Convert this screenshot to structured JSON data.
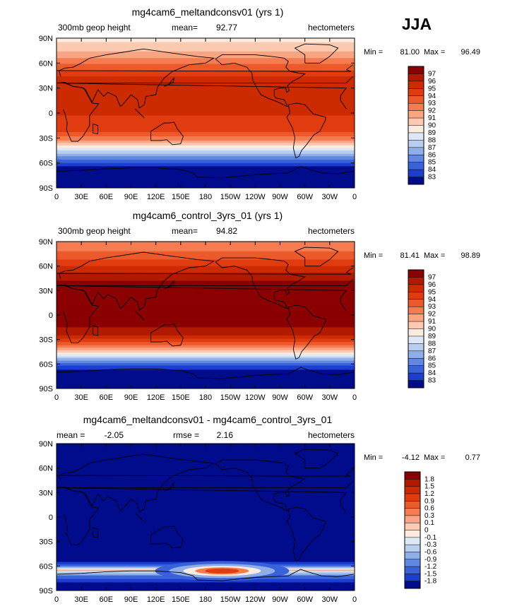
{
  "season": "JJA",
  "chart_data": [
    {
      "type": "heatmap",
      "title": "mg4cam6_meltandconsv01 (yrs 1)",
      "variable": "300mb geop height",
      "mean_label": "mean=",
      "mean": "92.77",
      "units": "hectometers",
      "min_label": "Min =",
      "min": "81.00",
      "max_label": "Max =",
      "max": "96.49",
      "x_ticks": [
        "0",
        "30E",
        "60E",
        "90E",
        "120E",
        "150E",
        "180",
        "150W",
        "120W",
        "90W",
        "60W",
        "30W",
        "0"
      ],
      "y_ticks": [
        "90N",
        "60N",
        "30N",
        "0",
        "30S",
        "60S",
        "90S"
      ],
      "colorbar_labels": [
        "97",
        "96",
        "95",
        "94",
        "93",
        "92",
        "91",
        "90",
        "89",
        "88",
        "87",
        "86",
        "85",
        "84",
        "83"
      ],
      "colorbar_colors": [
        "#8b0000",
        "#b21a00",
        "#cc2a00",
        "#e03c10",
        "#ec5a2c",
        "#f47c50",
        "#f9a482",
        "#fbcab0",
        "#fdebe0",
        "#dde8f7",
        "#b8cef0",
        "#8eaee8",
        "#6088e0",
        "#3a62d8",
        "#1c3ed0",
        "#000c8c"
      ],
      "profile": [
        [
          90,
          89.8
        ],
        [
          80,
          90.2
        ],
        [
          70,
          91.5
        ],
        [
          60,
          92.8
        ],
        [
          50,
          94.2
        ],
        [
          40,
          95.5
        ],
        [
          30,
          96.0
        ],
        [
          15,
          95.7
        ],
        [
          0,
          95.1
        ],
        [
          -15,
          94.6
        ],
        [
          -25,
          93.8
        ],
        [
          -35,
          91.5
        ],
        [
          -45,
          88.0
        ],
        [
          -55,
          85.2
        ],
        [
          -65,
          82.8
        ],
        [
          -75,
          81.8
        ],
        [
          -90,
          81.6
        ]
      ]
    },
    {
      "type": "heatmap",
      "title": "mg4cam6_control_3yrs_01 (yrs 1)",
      "variable": "300mb geop height",
      "mean_label": "mean=",
      "mean": "94.82",
      "units": "hectometers",
      "min_label": "Min =",
      "min": "81.41",
      "max_label": "Max =",
      "max": "98.89",
      "x_ticks": [
        "0",
        "30E",
        "60E",
        "90E",
        "120E",
        "150E",
        "180",
        "150W",
        "120W",
        "90W",
        "60W",
        "30W",
        "0"
      ],
      "y_ticks": [
        "90N",
        "60N",
        "30N",
        "0",
        "30S",
        "60S",
        "90S"
      ],
      "colorbar_labels": [
        "97",
        "96",
        "95",
        "94",
        "93",
        "92",
        "91",
        "90",
        "89",
        "88",
        "87",
        "86",
        "85",
        "84",
        "83"
      ],
      "colorbar_colors": [
        "#8b0000",
        "#b21a00",
        "#cc2a00",
        "#e03c10",
        "#ec5a2c",
        "#f47c50",
        "#f9a482",
        "#fbcab0",
        "#fdebe0",
        "#dde8f7",
        "#b8cef0",
        "#8eaee8",
        "#6088e0",
        "#3a62d8",
        "#1c3ed0",
        "#000c8c"
      ],
      "profile": [
        [
          90,
          92.3
        ],
        [
          80,
          92.8
        ],
        [
          70,
          93.8
        ],
        [
          60,
          95.0
        ],
        [
          50,
          96.3
        ],
        [
          40,
          97.2
        ],
        [
          30,
          97.6
        ],
        [
          15,
          97.5
        ],
        [
          0,
          97.3
        ],
        [
          -15,
          97.0
        ],
        [
          -25,
          96.0
        ],
        [
          -35,
          93.5
        ],
        [
          -45,
          90.2
        ],
        [
          -55,
          86.3
        ],
        [
          -65,
          83.2
        ],
        [
          -75,
          82.2
        ],
        [
          -90,
          81.9
        ]
      ]
    },
    {
      "type": "heatmap",
      "title": "mg4cam6_meltandconsv01 - mg4cam6_control_3yrs_01",
      "mean_label": "mean =",
      "mean": "-2.05",
      "rmse_label": "rmse =",
      "rmse": "2.16",
      "units": "hectometers",
      "min_label": "Min =",
      "min": "-4.12",
      "max_label": "Max =",
      "max": "0.77",
      "x_ticks": [
        "0",
        "30E",
        "60E",
        "90E",
        "120E",
        "150E",
        "180",
        "150W",
        "120W",
        "90W",
        "60W",
        "30W",
        "0"
      ],
      "y_ticks": [
        "90N",
        "60N",
        "30N",
        "0",
        "30S",
        "60S",
        "90S"
      ],
      "colorbar_labels": [
        "1.8",
        "1.5",
        "1.2",
        "0.9",
        "0.6",
        "0.3",
        "0.1",
        "0",
        "-0.1",
        "-0.3",
        "-0.6",
        "-0.9",
        "-1.2",
        "-1.5",
        "-1.8"
      ],
      "colorbar_colors": [
        "#8b0000",
        "#b21a00",
        "#cc2a00",
        "#e03c10",
        "#ec5a2c",
        "#f47c50",
        "#f9a482",
        "#fbcab0",
        "#fdebe0",
        "#dde8f7",
        "#b8cef0",
        "#8eaee8",
        "#6088e0",
        "#3a62d8",
        "#1c3ed0",
        "#000c8c"
      ],
      "profile": [
        [
          90,
          -2.3
        ],
        [
          75,
          -2.2
        ],
        [
          60,
          -2.0
        ],
        [
          30,
          -2.1
        ],
        [
          0,
          -2.05
        ],
        [
          -30,
          -2.1
        ],
        [
          -50,
          -2.2
        ],
        [
          -58,
          -1.6
        ],
        [
          -62,
          -0.6
        ],
        [
          -65,
          0.2
        ],
        [
          -68,
          -0.4
        ],
        [
          -72,
          -1.2
        ],
        [
          -80,
          -1.8
        ],
        [
          -90,
          -2.0
        ]
      ]
    }
  ]
}
